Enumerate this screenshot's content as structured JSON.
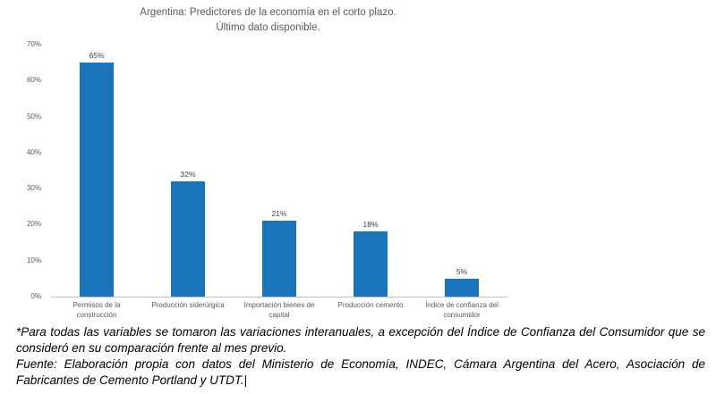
{
  "title": {
    "line1": "Argentina: Predictores de la economía en el corto plazo.",
    "line2": "Último dato disponible."
  },
  "chart_data": {
    "type": "bar",
    "title": "Argentina: Predictores de la economía en el corto plazo. Último dato disponible.",
    "categories": [
      "Permisos de la construcción",
      "Producción siderúrgica",
      "Importación bienes de capital",
      "Producción cemento",
      "Índice de confianza del consumidor"
    ],
    "values": [
      65,
      32,
      21,
      18,
      5
    ],
    "data_labels": [
      "65%",
      "32%",
      "21%",
      "18%",
      "5%"
    ],
    "xlabel": "",
    "ylabel": "",
    "ylim": [
      0,
      70
    ],
    "ytick_step": 10,
    "yticks": [
      "0%",
      "10%",
      "20%",
      "30%",
      "40%",
      "50%",
      "60%",
      "70%"
    ],
    "bar_color": "#1b75bb",
    "grid": false,
    "legend_position": "none"
  },
  "footnote": {
    "note": "*Para todas las variables se tomaron las variaciones interanuales, a excepción del Índice de Confianza del Consumidor que se consideró en su comparación frente al mes previo.",
    "source": "Fuente: Elaboración propia con datos del Ministerio de Economía, INDEC, Cámara Argentina del Acero, Asociación de Fabricantes de Cemento Portland y UTDT.",
    "cursor": "|"
  }
}
